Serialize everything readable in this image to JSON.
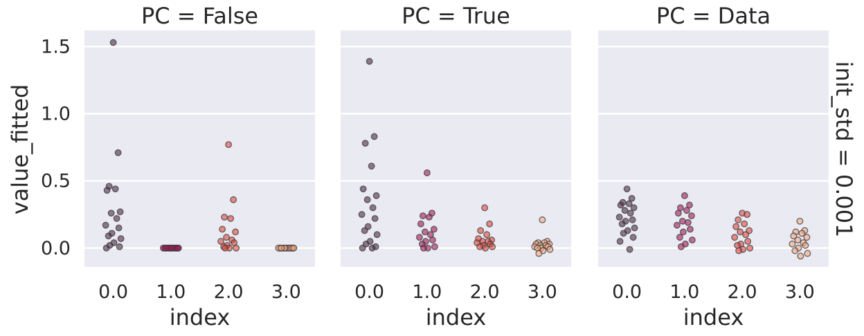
{
  "chart_data": {
    "type": "scatter",
    "variant": "strip",
    "ylabel": "value_fitted",
    "row_title": "init_std = 0.001",
    "ylim": [
      -0.14,
      1.62
    ],
    "yticks": [
      "0.0",
      "0.5",
      "1.0",
      "1.5"
    ],
    "xticks": [
      "0.0",
      "1.0",
      "2.0",
      "3.0"
    ],
    "grid": true,
    "colors": {
      "0.0": "#4b2846",
      "1.0": "#a2195a",
      "2.0": "#e0473e",
      "3.0": "#f2a982"
    },
    "panels": [
      {
        "title": "PC = False",
        "xlabel": "index",
        "groups": [
          {
            "index": "0.0",
            "values": [
              1.53,
              0.71,
              0.46,
              0.44,
              0.43,
              0.27,
              0.26,
              0.22,
              0.17,
              0.15,
              0.11,
              0.09,
              0.07,
              0.04,
              0.02,
              0.01,
              0.0
            ]
          },
          {
            "index": "1.0",
            "values": [
              0.0,
              0.0,
              0.0,
              0.0,
              0.0,
              0.0,
              0.0,
              0.0,
              0.0,
              0.0,
              0.0,
              0.0,
              0.0,
              0.0
            ]
          },
          {
            "index": "2.0",
            "values": [
              0.77,
              0.36,
              0.23,
              0.22,
              0.14,
              0.12,
              0.08,
              0.06,
              0.05,
              0.04,
              0.02,
              0.01,
              0.0,
              0.0,
              0.0
            ]
          },
          {
            "index": "3.0",
            "values": [
              0.0,
              0.0,
              0.0,
              0.0,
              0.0,
              0.0,
              0.0,
              0.0,
              0.0,
              0.0,
              0.0,
              0.0,
              0.0
            ]
          }
        ]
      },
      {
        "title": "PC = True",
        "xlabel": "index",
        "groups": [
          {
            "index": "0.0",
            "values": [
              1.39,
              0.83,
              0.78,
              0.61,
              0.44,
              0.39,
              0.36,
              0.3,
              0.25,
              0.22,
              0.16,
              0.13,
              0.1,
              0.05,
              0.03,
              0.01,
              0.0,
              0.0
            ]
          },
          {
            "index": "1.0",
            "values": [
              0.56,
              0.26,
              0.24,
              0.23,
              0.18,
              0.14,
              0.12,
              0.1,
              0.08,
              0.06,
              0.05,
              0.03,
              0.01,
              0.0,
              0.0
            ]
          },
          {
            "index": "2.0",
            "values": [
              0.3,
              0.18,
              0.13,
              0.1,
              0.07,
              0.06,
              0.05,
              0.05,
              0.04,
              0.03,
              0.02,
              0.01,
              0.01,
              0.0
            ]
          },
          {
            "index": "3.0",
            "values": [
              0.21,
              0.05,
              0.04,
              0.04,
              0.03,
              0.03,
              0.02,
              0.02,
              0.01,
              0.01,
              0.0,
              0.0,
              -0.01,
              -0.02,
              -0.04
            ]
          }
        ]
      },
      {
        "title": "PC = Data",
        "xlabel": "index",
        "groups": [
          {
            "index": "0.0",
            "values": [
              0.44,
              0.37,
              0.34,
              0.33,
              0.32,
              0.3,
              0.28,
              0.26,
              0.23,
              0.21,
              0.2,
              0.18,
              0.15,
              0.13,
              0.11,
              0.08,
              0.05,
              -0.01
            ]
          },
          {
            "index": "1.0",
            "values": [
              0.39,
              0.32,
              0.3,
              0.28,
              0.26,
              0.24,
              0.2,
              0.19,
              0.17,
              0.14,
              0.12,
              0.08,
              0.06,
              0.03,
              0.01
            ]
          },
          {
            "index": "2.0",
            "values": [
              0.26,
              0.25,
              0.21,
              0.18,
              0.16,
              0.13,
              0.12,
              0.1,
              0.08,
              0.05,
              0.03,
              0.02,
              0.0,
              -0.01,
              -0.02
            ]
          },
          {
            "index": "3.0",
            "values": [
              0.2,
              0.13,
              0.12,
              0.11,
              0.09,
              0.08,
              0.06,
              0.04,
              0.03,
              0.02,
              0.0,
              -0.02,
              -0.04,
              -0.06
            ]
          }
        ]
      }
    ]
  }
}
